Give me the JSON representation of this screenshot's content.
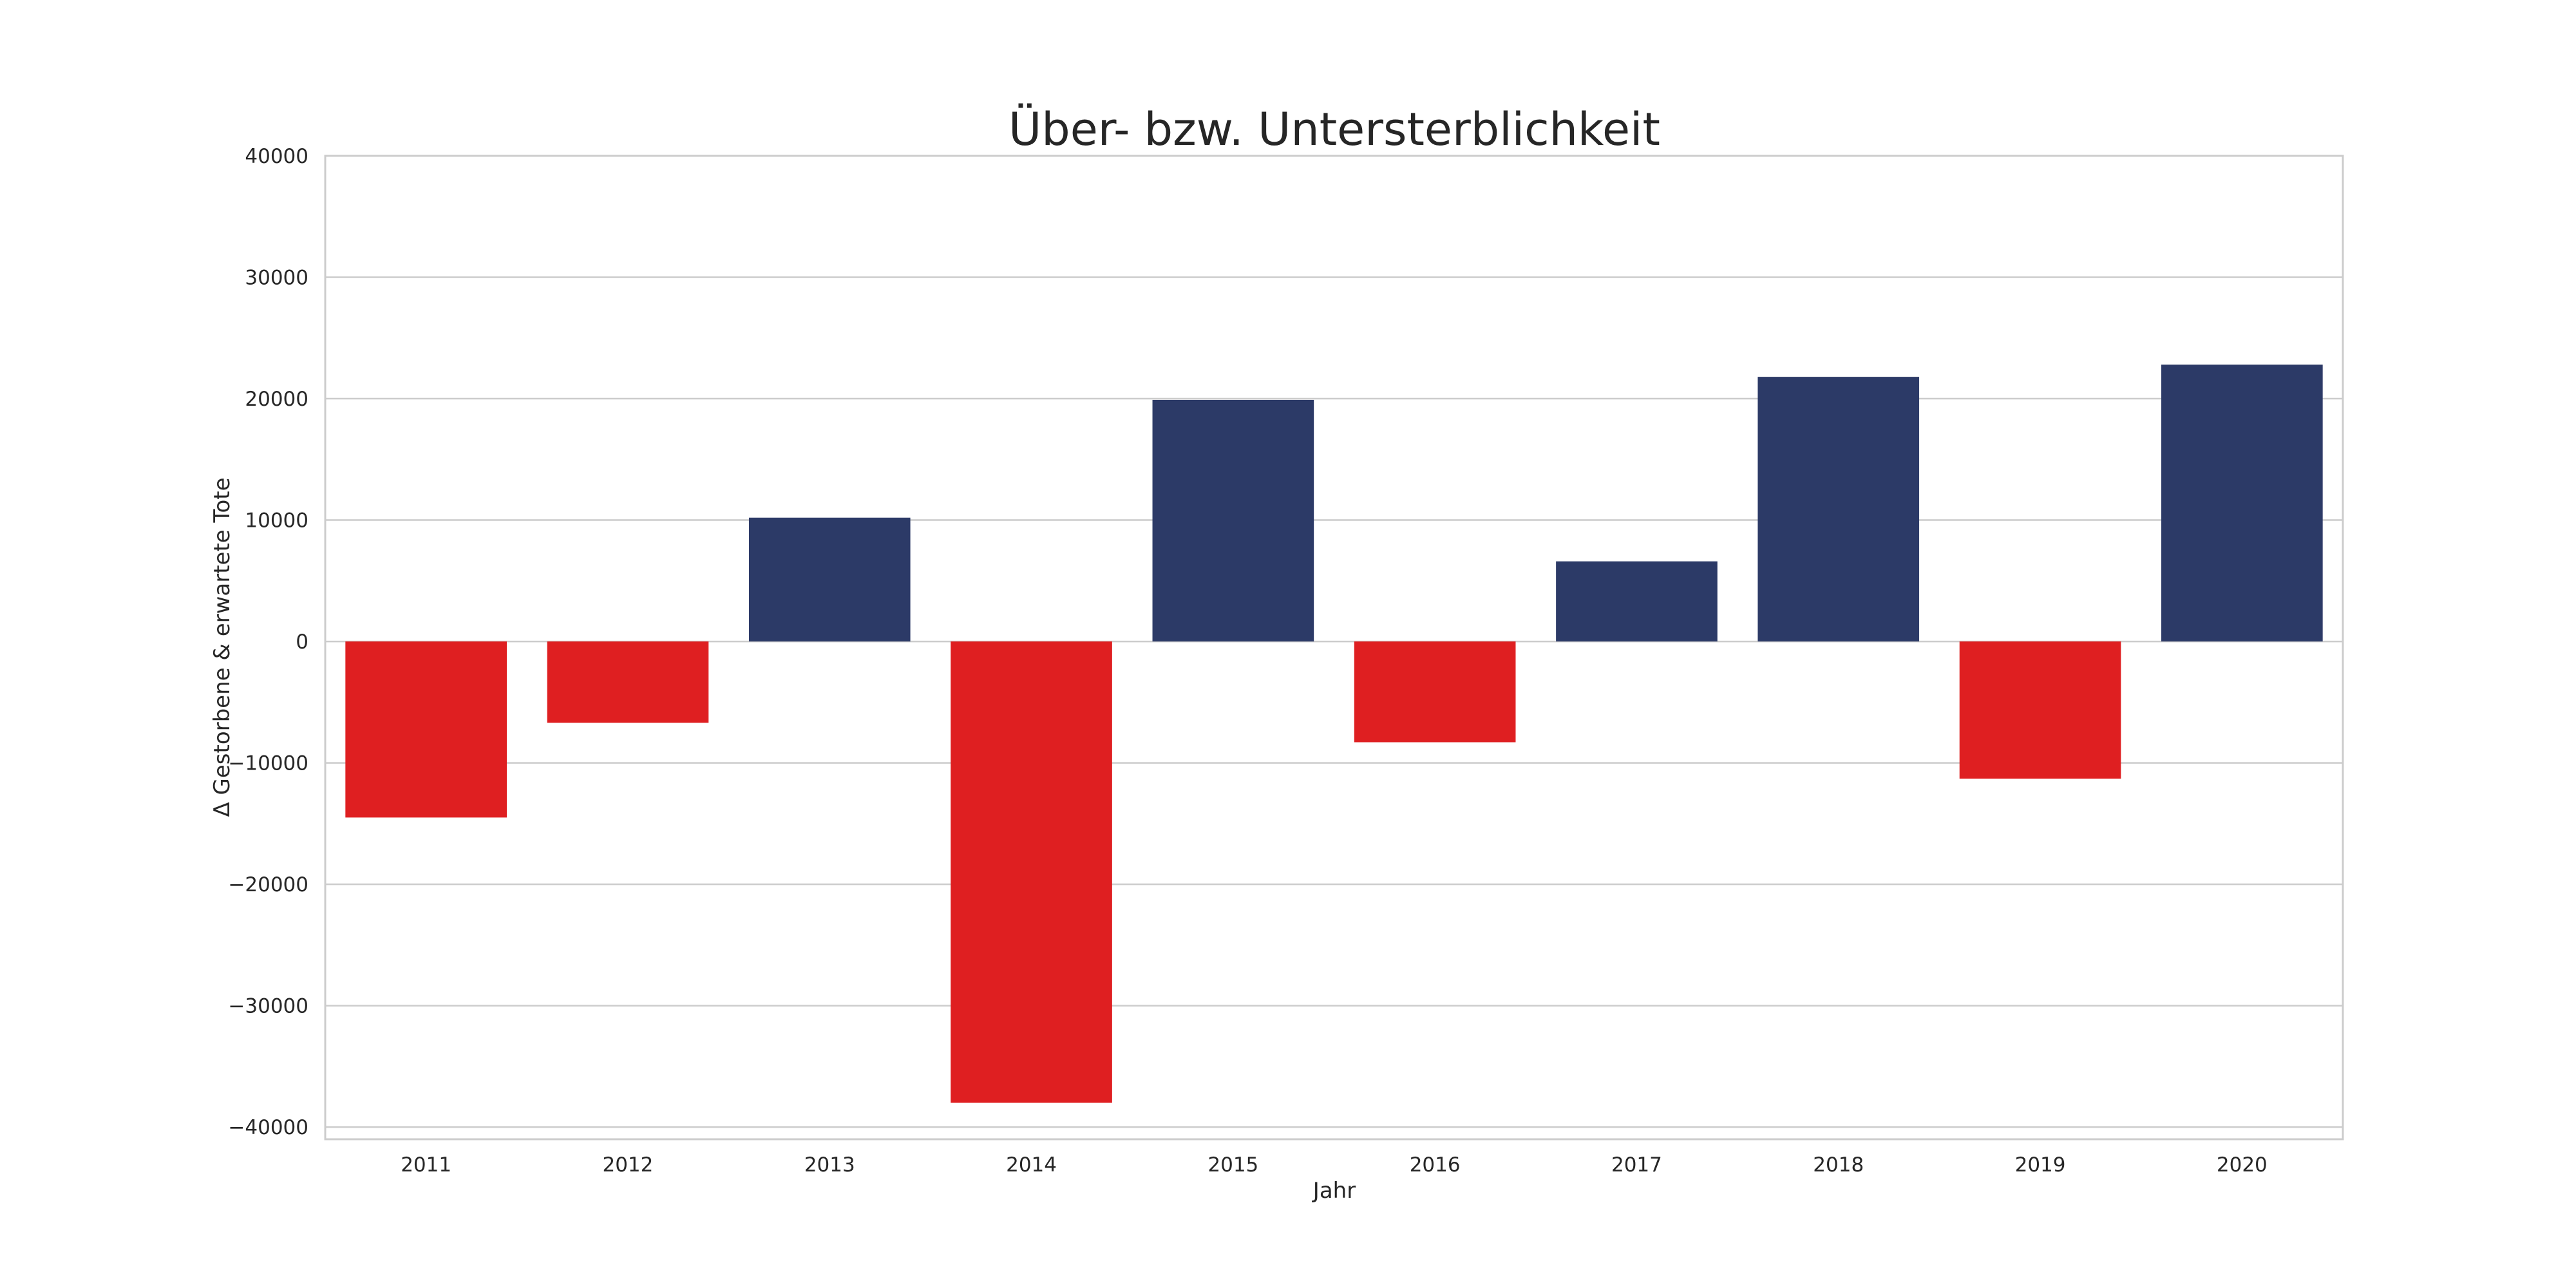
{
  "chart_data": {
    "type": "bar",
    "title": "Über- bzw. Untersterblichkeit",
    "xlabel": "Jahr",
    "ylabel": "Δ Gestorbene & erwartete Tote",
    "categories": [
      "2011",
      "2012",
      "2013",
      "2014",
      "2015",
      "2016",
      "2017",
      "2018",
      "2019",
      "2020"
    ],
    "values": [
      -14500,
      -6700,
      10200,
      -38000,
      19900,
      -8300,
      6600,
      21800,
      -11300,
      22800
    ],
    "ylim": [
      -41000,
      40000
    ],
    "yticks": [
      40000,
      30000,
      20000,
      10000,
      0,
      -10000,
      -20000,
      -30000,
      -40000
    ],
    "ytick_labels": [
      "40000",
      "30000",
      "20000",
      "10000",
      "0",
      "−10000",
      "−20000",
      "−30000",
      "−40000"
    ],
    "grid": true,
    "colors": {
      "positive": "#2c3a67",
      "negative": "#df1f21"
    }
  }
}
